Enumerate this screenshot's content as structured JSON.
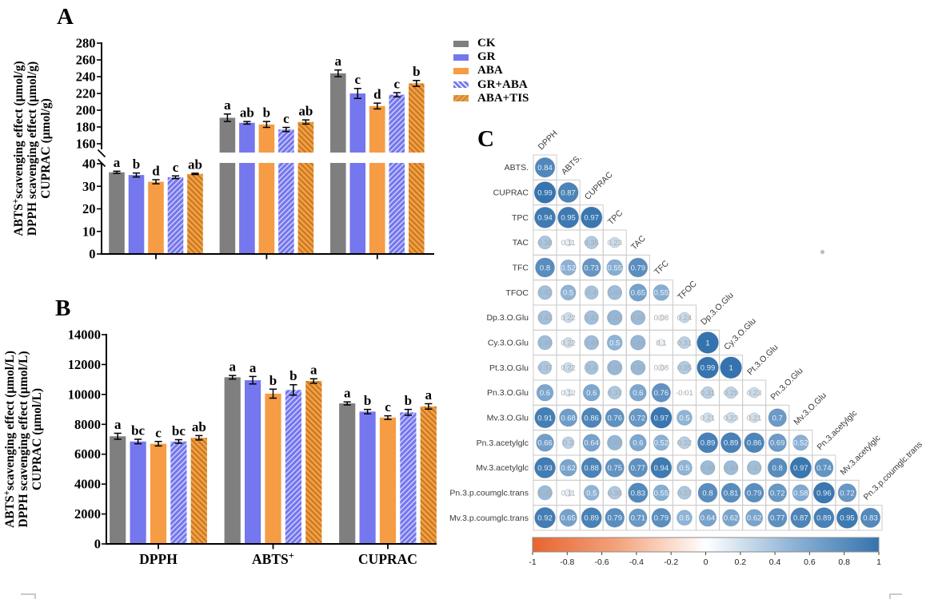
{
  "page": {
    "background": "#ffffff"
  },
  "panels": {
    "a_label": "A",
    "b_label": "B",
    "c_label": "C"
  },
  "legend": {
    "items": [
      {
        "label": "CK",
        "color": "#7f7f7f",
        "hatch": "none"
      },
      {
        "label": "GR",
        "color": "#7577ee",
        "hatch": "none"
      },
      {
        "label": "ABA",
        "color": "#f59c44",
        "hatch": "none"
      },
      {
        "label": "GR+ABA",
        "color": "#7577ee",
        "hatch": "light-diagonal-stripes"
      },
      {
        "label": "ABA+TIS",
        "color": "#f59c44",
        "hatch": "dark-diagonal-stripes"
      }
    ]
  },
  "chart_data": [
    {
      "panel": "A",
      "type": "bar",
      "grouped": true,
      "categories": [
        "DPPH",
        "ABTS+",
        "CUPRAC"
      ],
      "category_labels_shown": false,
      "ylabel_lines": [
        "ABTS⁺scavenging effect (μmol/g)",
        "DPPH scavenging effect (μmol/g)",
        "CUPRAC (μmol/g)"
      ],
      "axis": {
        "broken": true,
        "lower_range": [
          0,
          40
        ],
        "lower_ticks": [
          0,
          10,
          20,
          30,
          40
        ],
        "upper_range": [
          160,
          280
        ],
        "upper_ticks": [
          160,
          180,
          200,
          220,
          240,
          260,
          280
        ]
      },
      "series": [
        {
          "name": "CK",
          "color": "#7f7f7f",
          "hatch": "none",
          "values": [
            36.2,
            191,
            244
          ],
          "errors": [
            0.5,
            4.5,
            4
          ],
          "letters": [
            "a",
            "a",
            "a"
          ]
        },
        {
          "name": "GR",
          "color": "#7577ee",
          "hatch": "none",
          "values": [
            35.0,
            185,
            220
          ],
          "errors": [
            0.9,
            1.5,
            6
          ],
          "letters": [
            "b",
            "ab",
            "c"
          ]
        },
        {
          "name": "ABA",
          "color": "#f59c44",
          "hatch": "none",
          "values": [
            32.0,
            183,
            205
          ],
          "errors": [
            0.9,
            3.5,
            3.5
          ],
          "letters": [
            "d",
            "b",
            "d"
          ]
        },
        {
          "name": "GR+ABA",
          "color": "#7577ee",
          "hatch": "light",
          "values": [
            34.0,
            177,
            218.5
          ],
          "errors": [
            0.6,
            2.5,
            2.5
          ],
          "letters": [
            "c",
            "c",
            "c"
          ]
        },
        {
          "name": "ABA+TIS",
          "color": "#f59c44",
          "hatch": "dark",
          "values": [
            35.5,
            186,
            232
          ],
          "errors": [
            0.3,
            2.5,
            3.5
          ],
          "letters": [
            "ab",
            "ab",
            "b"
          ]
        }
      ]
    },
    {
      "panel": "B",
      "type": "bar",
      "grouped": true,
      "categories": [
        "DPPH",
        "ABTS⁺",
        "CUPRAC"
      ],
      "category_labels_shown": true,
      "ylabel_lines": [
        "ABTS⁺scavenging effect (μmol/L)",
        "DPPH scavenging effect (μmol/L)",
        "CUPRAC (μmol/L)"
      ],
      "axis": {
        "broken": false,
        "range": [
          0,
          14000
        ],
        "ticks": [
          0,
          2000,
          4000,
          6000,
          8000,
          10000,
          12000,
          14000
        ]
      },
      "series": [
        {
          "name": "CK",
          "color": "#7f7f7f",
          "hatch": "none",
          "values": [
            7200,
            11150,
            9400
          ],
          "errors": [
            200,
            120,
            100
          ],
          "letters": [
            "a",
            "a",
            "a"
          ]
        },
        {
          "name": "GR",
          "color": "#7577ee",
          "hatch": "none",
          "values": [
            6850,
            10950,
            8850
          ],
          "errors": [
            150,
            250,
            150
          ],
          "letters": [
            "bc",
            "a",
            "b"
          ]
        },
        {
          "name": "ABA",
          "color": "#f59c44",
          "hatch": "none",
          "values": [
            6700,
            10050,
            8450
          ],
          "errors": [
            150,
            300,
            120
          ],
          "letters": [
            "c",
            "b",
            "c"
          ]
        },
        {
          "name": "GR+ABA",
          "color": "#7577ee",
          "hatch": "light",
          "values": [
            6850,
            10300,
            8800
          ],
          "errors": [
            120,
            350,
            200
          ],
          "letters": [
            "bc",
            "b",
            "b"
          ]
        },
        {
          "name": "ABA+TIS",
          "color": "#f59c44",
          "hatch": "dark",
          "values": [
            7100,
            10900,
            9200
          ],
          "errors": [
            150,
            150,
            180
          ],
          "letters": [
            "ab",
            "a",
            "a"
          ]
        }
      ]
    },
    {
      "panel": "C",
      "type": "correlation-matrix",
      "layout": "lower-triangle",
      "variables": [
        "DPPH",
        "ABTS.",
        "CUPRAC",
        "TPC",
        "TAC",
        "TFC",
        "TFOC",
        "Dp.3.O.Glu",
        "Cy.3.O.Glu",
        "Pt.3.O.Glu",
        "Pn.3.O.Glu",
        "Mv.3.O.Glu",
        "Pn.3.acetylglc",
        "Mv.3.acetylglc",
        "Pn.3.p.coumglc.trans",
        "Mv.3.p.coumglc.trans"
      ],
      "lower_triangle": [
        [
          0.84
        ],
        [
          0.99,
          0.87
        ],
        [
          0.94,
          0.95,
          0.97
        ],
        [
          0.38,
          0.11,
          0.35,
          0.23
        ],
        [
          0.8,
          0.52,
          0.73,
          0.55,
          0.79
        ],
        [
          0.42,
          0.5,
          0.4,
          0.44,
          0.65,
          0.55
        ],
        [
          0.42,
          0.22,
          0.42,
          0.48,
          0.45,
          0.08,
          0.24
        ],
        [
          0.44,
          0.22,
          0.44,
          0.5,
          0.48,
          0.1,
          0.31,
          1
        ],
        [
          0.37,
          0.22,
          0.4,
          0.47,
          0.46,
          0.08,
          0.35,
          0.99,
          1
        ],
        [
          0.6,
          0.12,
          0.6,
          0.37,
          0.6,
          0.76,
          -0.01,
          0.31,
          0.29,
          0.23
        ],
        [
          0.91,
          0.68,
          0.86,
          0.76,
          0.72,
          0.97,
          0.5,
          0.21,
          0.23,
          0.21,
          0.7
        ],
        [
          0.66,
          0.3,
          0.64,
          0.48,
          0.6,
          0.52,
          0.32,
          0.89,
          0.89,
          0.86,
          0.69,
          0.52
        ],
        [
          0.93,
          0.62,
          0.88,
          0.75,
          0.77,
          0.94,
          0.5,
          0.45,
          0.44,
          0.43,
          0.8,
          0.97,
          0.74
        ],
        [
          0.45,
          0.11,
          0.5,
          0.36,
          0.83,
          0.55,
          0.37,
          0.8,
          0.81,
          0.79,
          0.72,
          0.58,
          0.96,
          0.72
        ],
        [
          0.92,
          0.65,
          0.89,
          0.79,
          0.71,
          0.79,
          0.5,
          0.64,
          0.62,
          0.62,
          0.77,
          0.87,
          0.89,
          0.95,
          0.83
        ]
      ],
      "colorbar": {
        "domain": [
          -1,
          1
        ],
        "ticks": [
          -1,
          -0.8,
          -0.6,
          -0.4,
          -0.2,
          0,
          0.2,
          0.4,
          0.6,
          0.8,
          1
        ],
        "negative_color": "#e86430",
        "mid_color": "#ffffff",
        "positive_color": "#3473ae"
      }
    }
  ]
}
